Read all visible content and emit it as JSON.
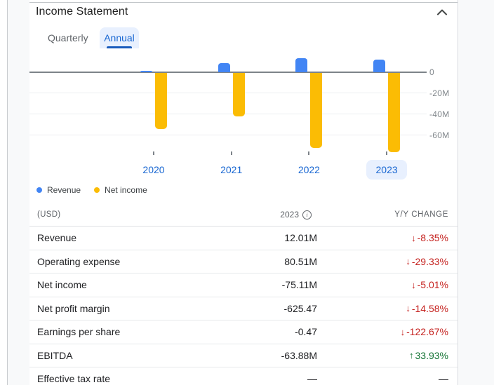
{
  "panel": {
    "title": "Income Statement"
  },
  "tabs": [
    {
      "label": "Quarterly",
      "active": false
    },
    {
      "label": "Annual",
      "active": true
    }
  ],
  "chart_data": {
    "type": "bar",
    "categories": [
      "2020",
      "2021",
      "2022",
      "2023"
    ],
    "series": [
      {
        "name": "Revenue",
        "color": "#4285F4",
        "values": [
          1.5,
          9.0,
          13.1,
          12.01
        ]
      },
      {
        "name": "Net income",
        "color": "#FBBC04",
        "values": [
          -53.0,
          -41.0,
          -71.5,
          -75.11
        ]
      }
    ],
    "unit": "millions USD",
    "yticks": [
      "0",
      "-20M",
      "-40M",
      "-60M"
    ],
    "ylim": [
      -80,
      15
    ],
    "grid": true,
    "legend_position": "bottom-left",
    "selected_category": "2023"
  },
  "legend": [
    {
      "label": "Revenue",
      "color": "#4285F4"
    },
    {
      "label": "Net income",
      "color": "#FBBC04"
    }
  ],
  "table": {
    "unit_header": "(USD)",
    "year_header": "2023",
    "change_header": "Y/Y CHANGE",
    "rows": [
      {
        "label": "Revenue",
        "value": "12.01M",
        "change": "-8.35%",
        "direction": "down"
      },
      {
        "label": "Operating expense",
        "value": "80.51M",
        "change": "-29.33%",
        "direction": "down"
      },
      {
        "label": "Net income",
        "value": "-75.11M",
        "change": "-5.01%",
        "direction": "down"
      },
      {
        "label": "Net profit margin",
        "value": "-625.47",
        "change": "-14.58%",
        "direction": "down"
      },
      {
        "label": "Earnings per share",
        "value": "-0.47",
        "change": "-122.67%",
        "direction": "down"
      },
      {
        "label": "EBITDA",
        "value": "-63.88M",
        "change": "33.93%",
        "direction": "up"
      },
      {
        "label": "Effective tax rate",
        "value": "—",
        "change": "—",
        "direction": "none"
      }
    ]
  },
  "colors": {
    "accent_blue": "#1967D2",
    "tab_selected_bg": "#E8F0FE",
    "tab_underline": "#185ABC",
    "year_chip_bg": "#E8F0FE",
    "negative": "#C5221F",
    "positive": "#137333",
    "bar_revenue": "#4285F4",
    "bar_net_income": "#FBBC04",
    "axis": "#7D8389",
    "gridline": "#ECEEF0"
  }
}
